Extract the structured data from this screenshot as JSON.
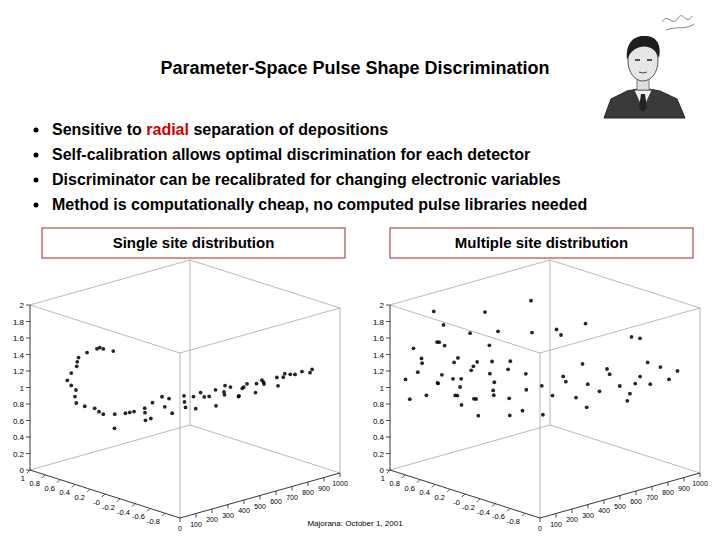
{
  "slide": {
    "title": "Parameter-Space Pulse Shape Discrimination",
    "bullets": [
      [
        {
          "text": "Sensitive to "
        },
        {
          "text": "radial",
          "color": "#cc0000"
        },
        {
          "text": " separation of depositions"
        }
      ],
      [
        {
          "text": "Self-calibration allows optimal discrimination for each detector"
        }
      ],
      [
        {
          "text": "Discriminator can be recalibrated for changing electronic variables"
        }
      ],
      [
        {
          "text": "Method is computationally cheap, no computed pulse libraries needed"
        }
      ]
    ],
    "footer": "Majorana: October 1, 2001"
  },
  "chart_data": [
    {
      "type": "scatter3d",
      "title": "Single site distribution",
      "color": "#000000",
      "x": [
        0.21,
        0.39,
        0.56,
        0.69,
        0.77,
        0.77,
        0.72,
        0.59,
        0.4,
        0.19,
        -0.01,
        -0.21,
        0.3,
        0.47,
        0.63,
        0.74,
        0.78,
        0.75,
        0.66,
        0.5,
        0.3,
        0.09,
        -0.11,
        -0.1,
        -0.15,
        -0.2,
        -0.25,
        -0.3,
        -0.35,
        -0.4,
        -0.45,
        -0.5,
        -0.55,
        -0.6,
        -0.65,
        0.0,
        -0.05,
        -0.1,
        -0.15,
        -0.2,
        -0.25,
        -0.3,
        -0.35,
        -0.4,
        0.1,
        0.0,
        -0.1,
        -0.2,
        -0.1,
        -0.3,
        0.2,
        -0.2,
        0.1,
        -0.4,
        0.3,
        -0.5,
        -0.6,
        -0.12,
        -0.22,
        -0.32,
        -0.42,
        -0.52,
        -0.6,
        -0.28,
        -0.38
      ],
      "z": [
        150,
        150,
        150,
        150,
        150,
        150,
        150,
        150,
        150,
        150,
        150,
        150,
        130,
        170,
        130,
        170,
        130,
        170,
        130,
        170,
        130,
        170,
        130,
        250,
        330,
        400,
        480,
        550,
        620,
        700,
        770,
        840,
        900,
        950,
        990,
        250,
        350,
        450,
        550,
        650,
        750,
        850,
        950,
        1000,
        300,
        420,
        520,
        600,
        700,
        800,
        380,
        900,
        550,
        650,
        200,
        600,
        800,
        300,
        450,
        600,
        750,
        880,
        1000,
        520,
        680
      ],
      "values": [
        1.59,
        1.58,
        1.47,
        1.32,
        1.16,
        1.01,
        0.89,
        0.81,
        0.8,
        0.83,
        0.91,
        1.02,
        1.6,
        1.53,
        1.4,
        1.24,
        1.08,
        0.95,
        0.84,
        0.8,
        0.81,
        0.86,
        0.96,
        1.0,
        1.02,
        1.03,
        1.04,
        1.05,
        1.06,
        1.07,
        1.09,
        1.1,
        1.12,
        1.14,
        1.16,
        0.85,
        0.88,
        0.9,
        0.92,
        0.94,
        0.96,
        0.98,
        1.0,
        1.02,
        0.7,
        0.75,
        0.78,
        0.8,
        0.85,
        0.88,
        0.65,
        0.9,
        0.72,
        0.95,
        0.6,
        1.0,
        1.05,
        1.05,
        1.0,
        1.08,
        1.05,
        1.13,
        1.1,
        0.98,
        1.02
      ],
      "xlim": [
        1,
        -1
      ],
      "xticks": [
        1,
        0.8,
        0.6,
        0.4,
        0.2,
        {
          "value": 0,
          "label": "-0"
        },
        -0.2,
        -0.4,
        -0.6,
        -0.8
      ],
      "ylim": [
        0,
        2
      ],
      "yticks": [
        0,
        0.2,
        0.4,
        0.6,
        0.8,
        1,
        1.2,
        1.4,
        1.6,
        1.8,
        2
      ],
      "zlim": [
        0,
        1000
      ],
      "zticks": [
        0,
        100,
        200,
        300,
        400,
        500,
        600,
        700,
        800,
        900,
        1000
      ]
    },
    {
      "type": "scatter3d",
      "title": "Multiple site distribution",
      "color": "#000000",
      "x": [
        0.9,
        0.9,
        0.9,
        0.9,
        0.8,
        0.8,
        0.8,
        0.8,
        0.7,
        0.7,
        0.7,
        0.7,
        0.6,
        0.6,
        0.6,
        0.6,
        0.5,
        0.5,
        0.5,
        0.5,
        0.4,
        0.4,
        0.4,
        0.4,
        0.3,
        0.3,
        0.3,
        0.3,
        0.2,
        0.2,
        0.2,
        0.2,
        0.1,
        0.1,
        0.1,
        0.1,
        0.0,
        0.0,
        0.0,
        0.0,
        -0.1,
        -0.15,
        -0.2,
        -0.25,
        -0.3,
        -0.35,
        -0.4,
        -0.45,
        -0.5,
        -0.55,
        -0.6,
        -0.65,
        -0.7,
        -0.2,
        -0.3,
        -0.4,
        -0.5,
        -0.6,
        -0.1,
        -0.35,
        0.5,
        0.2,
        0.8,
        0.0,
        -0.3,
        0.6,
        0.9,
        0.3,
        -0.5,
        0.7,
        0.1,
        -0.2,
        0.4,
        0.95
      ],
      "z": [
        50,
        150,
        250,
        100,
        80,
        200,
        300,
        30,
        60,
        160,
        260,
        360,
        120,
        220,
        320,
        40,
        90,
        190,
        290,
        390,
        140,
        240,
        340,
        60,
        110,
        210,
        310,
        410,
        170,
        270,
        370,
        70,
        130,
        230,
        330,
        430,
        180,
        280,
        380,
        480,
        500,
        560,
        600,
        650,
        700,
        740,
        780,
        820,
        860,
        900,
        940,
        970,
        1000,
        520,
        620,
        700,
        780,
        860,
        440,
        900,
        100,
        300,
        500,
        600,
        900,
        700,
        400,
        500,
        500,
        900,
        800,
        1000,
        600,
        250
      ],
      "values": [
        1.1,
        1.3,
        0.95,
        1.45,
        1.2,
        1.5,
        1.0,
        0.9,
        1.35,
        1.05,
        1.25,
        1.55,
        1.6,
        0.9,
        1.15,
        1.0,
        1.25,
        1.4,
        0.85,
        1.1,
        1.0,
        1.3,
        1.5,
        1.65,
        1.15,
        0.95,
        1.35,
        1.2,
        1.45,
        1.05,
        0.9,
        1.3,
        0.85,
        1.2,
        1.4,
        1.0,
        1.1,
        0.8,
        1.25,
        1.05,
        0.95,
        1.1,
        0.9,
        1.05,
        0.95,
        1.15,
        1.0,
        0.9,
        1.1,
        1.0,
        1.2,
        1.05,
        1.15,
        1.2,
        0.8,
        1.25,
        0.85,
        1.3,
        0.75,
        0.95,
        1.85,
        1.75,
        1.7,
        1.6,
        1.5,
        1.4,
        0.6,
        0.65,
        1.45,
        1.3,
        1.6,
        1.4,
        1.9,
        1.8
      ],
      "xlim": [
        1,
        -1
      ],
      "xticks": [
        1,
        0.8,
        0.6,
        0.4,
        0.2,
        {
          "value": 0,
          "label": "-0"
        },
        -0.2,
        -0.4,
        -0.6,
        -0.8
      ],
      "ylim": [
        0,
        2
      ],
      "yticks": [
        0,
        0.2,
        0.4,
        0.6,
        0.8,
        1,
        1.2,
        1.4,
        1.6,
        1.8,
        2
      ],
      "zlim": [
        0,
        1000
      ],
      "zticks": [
        0,
        100,
        200,
        300,
        400,
        500,
        600,
        700,
        800,
        900,
        1000
      ]
    }
  ]
}
